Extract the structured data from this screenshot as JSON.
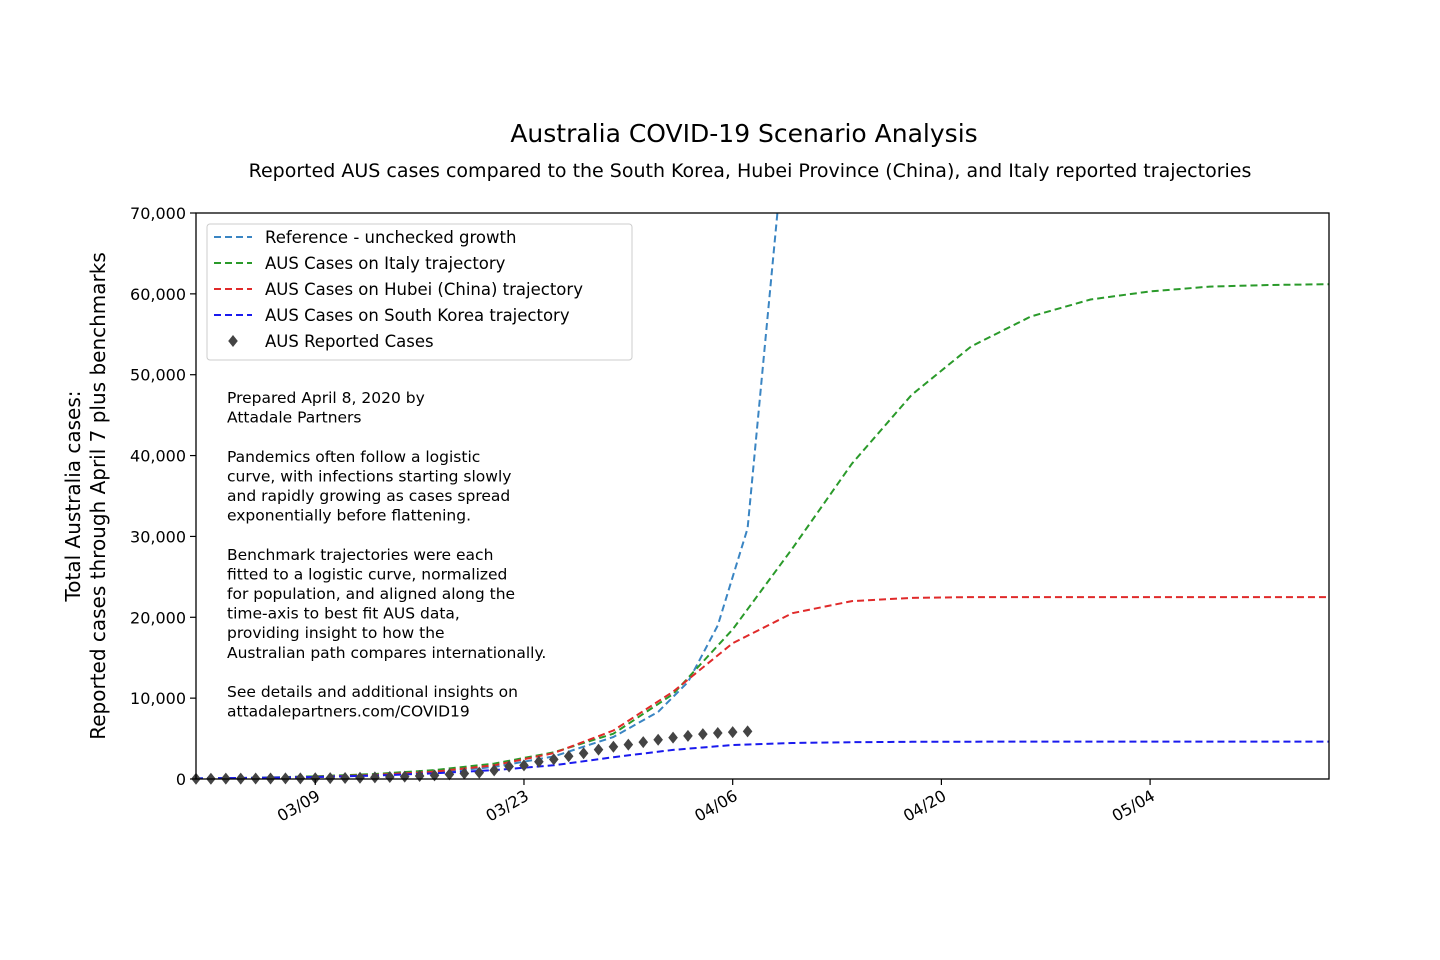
{
  "chart_data": {
    "type": "line",
    "title": "Australia COVID-19 Scenario Analysis",
    "subtitle": "Reported AUS cases compared to the South Korea, Hubei Province (China), and Italy reported trajectories",
    "ylabel_lines": [
      "Total Australia cases:",
      "Reported cases through April 7 plus benchmarks"
    ],
    "x_axis": {
      "type": "date",
      "range": [
        "2020-03-01",
        "2020-05-16"
      ],
      "ticks": [
        "03/09",
        "03/23",
        "04/06",
        "04/20",
        "05/04"
      ]
    },
    "y_axis": {
      "range": [
        0,
        70000
      ],
      "ticks": [
        "0",
        "10,000",
        "20,000",
        "30,000",
        "40,000",
        "50,000",
        "60,000",
        "70,000"
      ]
    },
    "grid": false,
    "legend_position": "top-left",
    "series": [
      {
        "name": "Reference - unchecked growth",
        "style": "dashed",
        "color": "#3a85c3",
        "x": [
          "2020-03-01",
          "2020-03-05",
          "2020-03-09",
          "2020-03-13",
          "2020-03-17",
          "2020-03-21",
          "2020-03-25",
          "2020-03-29",
          "2020-04-01",
          "2020-04-03",
          "2020-04-05",
          "2020-04-07",
          "2020-04-09"
        ],
        "y": [
          70,
          130,
          240,
          440,
          800,
          1500,
          2800,
          5200,
          8300,
          12000,
          19000,
          31000,
          70000
        ]
      },
      {
        "name": "AUS Cases on Italy trajectory",
        "style": "dashed",
        "color": "#2a9a2a",
        "x": [
          "2020-03-01",
          "2020-03-05",
          "2020-03-09",
          "2020-03-13",
          "2020-03-17",
          "2020-03-21",
          "2020-03-25",
          "2020-03-29",
          "2020-04-02",
          "2020-04-06",
          "2020-04-10",
          "2020-04-14",
          "2020-04-18",
          "2020-04-22",
          "2020-04-26",
          "2020-04-30",
          "2020-05-04",
          "2020-05-08",
          "2020-05-12",
          "2020-05-16"
        ],
        "y": [
          60,
          150,
          330,
          620,
          1100,
          1900,
          3300,
          5600,
          10500,
          18500,
          28500,
          39000,
          47500,
          53500,
          57200,
          59300,
          60300,
          60900,
          61100,
          61200
        ]
      },
      {
        "name": "AUS Cases on Hubei (China) trajectory",
        "style": "dashed",
        "color": "#e02a2a",
        "x": [
          "2020-03-01",
          "2020-03-05",
          "2020-03-09",
          "2020-03-13",
          "2020-03-17",
          "2020-03-21",
          "2020-03-25",
          "2020-03-29",
          "2020-04-02",
          "2020-04-06",
          "2020-04-10",
          "2020-04-14",
          "2020-04-18",
          "2020-04-22",
          "2020-04-26",
          "2020-05-02",
          "2020-05-16"
        ],
        "y": [
          40,
          110,
          260,
          500,
          900,
          1700,
          3200,
          6000,
          10800,
          16800,
          20500,
          22000,
          22400,
          22500,
          22500,
          22500,
          22500
        ]
      },
      {
        "name": "AUS Cases on South Korea trajectory",
        "style": "dashed",
        "color": "#1a1aee",
        "x": [
          "2020-03-01",
          "2020-03-05",
          "2020-03-09",
          "2020-03-13",
          "2020-03-17",
          "2020-03-21",
          "2020-03-25",
          "2020-03-29",
          "2020-04-02",
          "2020-04-06",
          "2020-04-10",
          "2020-04-14",
          "2020-04-18",
          "2020-04-26",
          "2020-05-16"
        ],
        "y": [
          80,
          150,
          250,
          420,
          700,
          1100,
          1700,
          2700,
          3600,
          4200,
          4450,
          4550,
          4600,
          4620,
          4620
        ]
      },
      {
        "name": "AUS Reported Cases",
        "style": "markers",
        "color": "#444444",
        "x": [
          "2020-03-01",
          "2020-03-02",
          "2020-03-03",
          "2020-03-04",
          "2020-03-05",
          "2020-03-06",
          "2020-03-07",
          "2020-03-08",
          "2020-03-09",
          "2020-03-10",
          "2020-03-11",
          "2020-03-12",
          "2020-03-13",
          "2020-03-14",
          "2020-03-15",
          "2020-03-16",
          "2020-03-17",
          "2020-03-18",
          "2020-03-19",
          "2020-03-20",
          "2020-03-21",
          "2020-03-22",
          "2020-03-23",
          "2020-03-24",
          "2020-03-25",
          "2020-03-26",
          "2020-03-27",
          "2020-03-28",
          "2020-03-29",
          "2020-03-30",
          "2020-03-31",
          "2020-04-01",
          "2020-04-02",
          "2020-04-03",
          "2020-04-04",
          "2020-04-05",
          "2020-04-06",
          "2020-04-07"
        ],
        "y": [
          27,
          30,
          39,
          52,
          57,
          63,
          74,
          80,
          100,
          112,
          127,
          156,
          199,
          250,
          297,
          377,
          452,
          568,
          681,
          791,
          1071,
          1549,
          1682,
          2136,
          2431,
          2810,
          3180,
          3640,
          3984,
          4245,
          4560,
          4860,
          5116,
          5330,
          5550,
          5687,
          5797,
          5895
        ]
      }
    ],
    "annotation": [
      "Prepared April 8, 2020 by",
      "Attadale Partners",
      "",
      "Pandemics often follow a logistic",
      "curve, with infections starting slowly",
      "and rapidly growing as cases spread",
      "exponentially before flattening.",
      "",
      "Benchmark trajectories were each",
      "fitted to a logistic curve, normalized",
      "for population, and aligned along the",
      "time-axis to best fit AUS data,",
      "providing insight to how the",
      "Australian path compares internationally.",
      "",
      "See details and additional insights on",
      "attadalepartners.com/COVID19"
    ]
  }
}
